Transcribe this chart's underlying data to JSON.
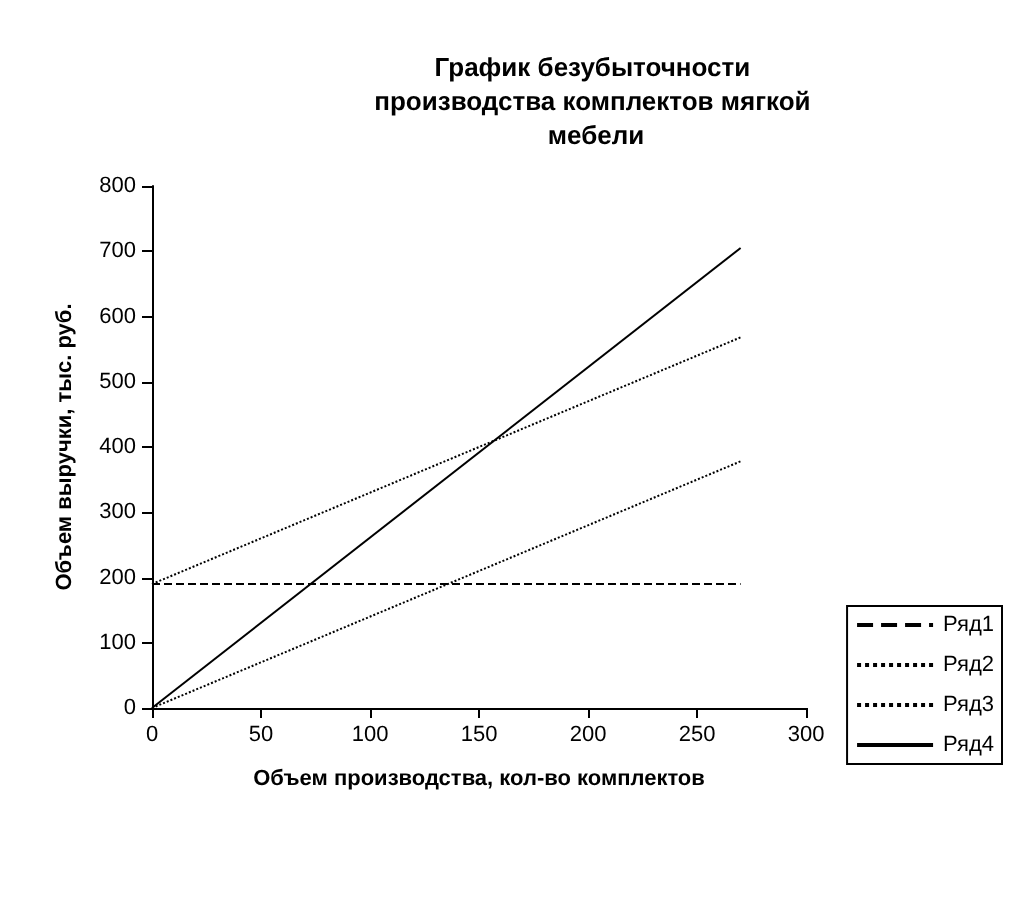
{
  "chart_data": {
    "type": "line",
    "title": "График безубыточности производства комплектов мягкой мебели",
    "xlabel": "Объем производства, кол-во комплектов",
    "ylabel": "Объем выручки, тыс. руб.",
    "x": [
      0,
      270
    ],
    "xlim": [
      0,
      300
    ],
    "xticks": [
      0,
      50,
      100,
      150,
      200,
      250,
      300
    ],
    "ylim": [
      0,
      800
    ],
    "yticks": [
      0,
      100,
      200,
      300,
      400,
      500,
      600,
      700,
      800
    ],
    "grid": false,
    "legend": "bottom right",
    "marker": "none",
    "series": [
      {
        "name": "Ряд1",
        "color": "#000000",
        "line_style": "dashed",
        "values": [
          190,
          190
        ]
      },
      {
        "name": "Ряд2",
        "color": "#000000",
        "line_style": "dotted",
        "values": [
          0,
          378
        ]
      },
      {
        "name": "Ряд3",
        "color": "#000000",
        "line_style": "dotted",
        "values": [
          190,
          568
        ]
      },
      {
        "name": "Ряд4",
        "color": "#000000",
        "line_style": "solid",
        "values": [
          0,
          705
        ]
      }
    ]
  }
}
